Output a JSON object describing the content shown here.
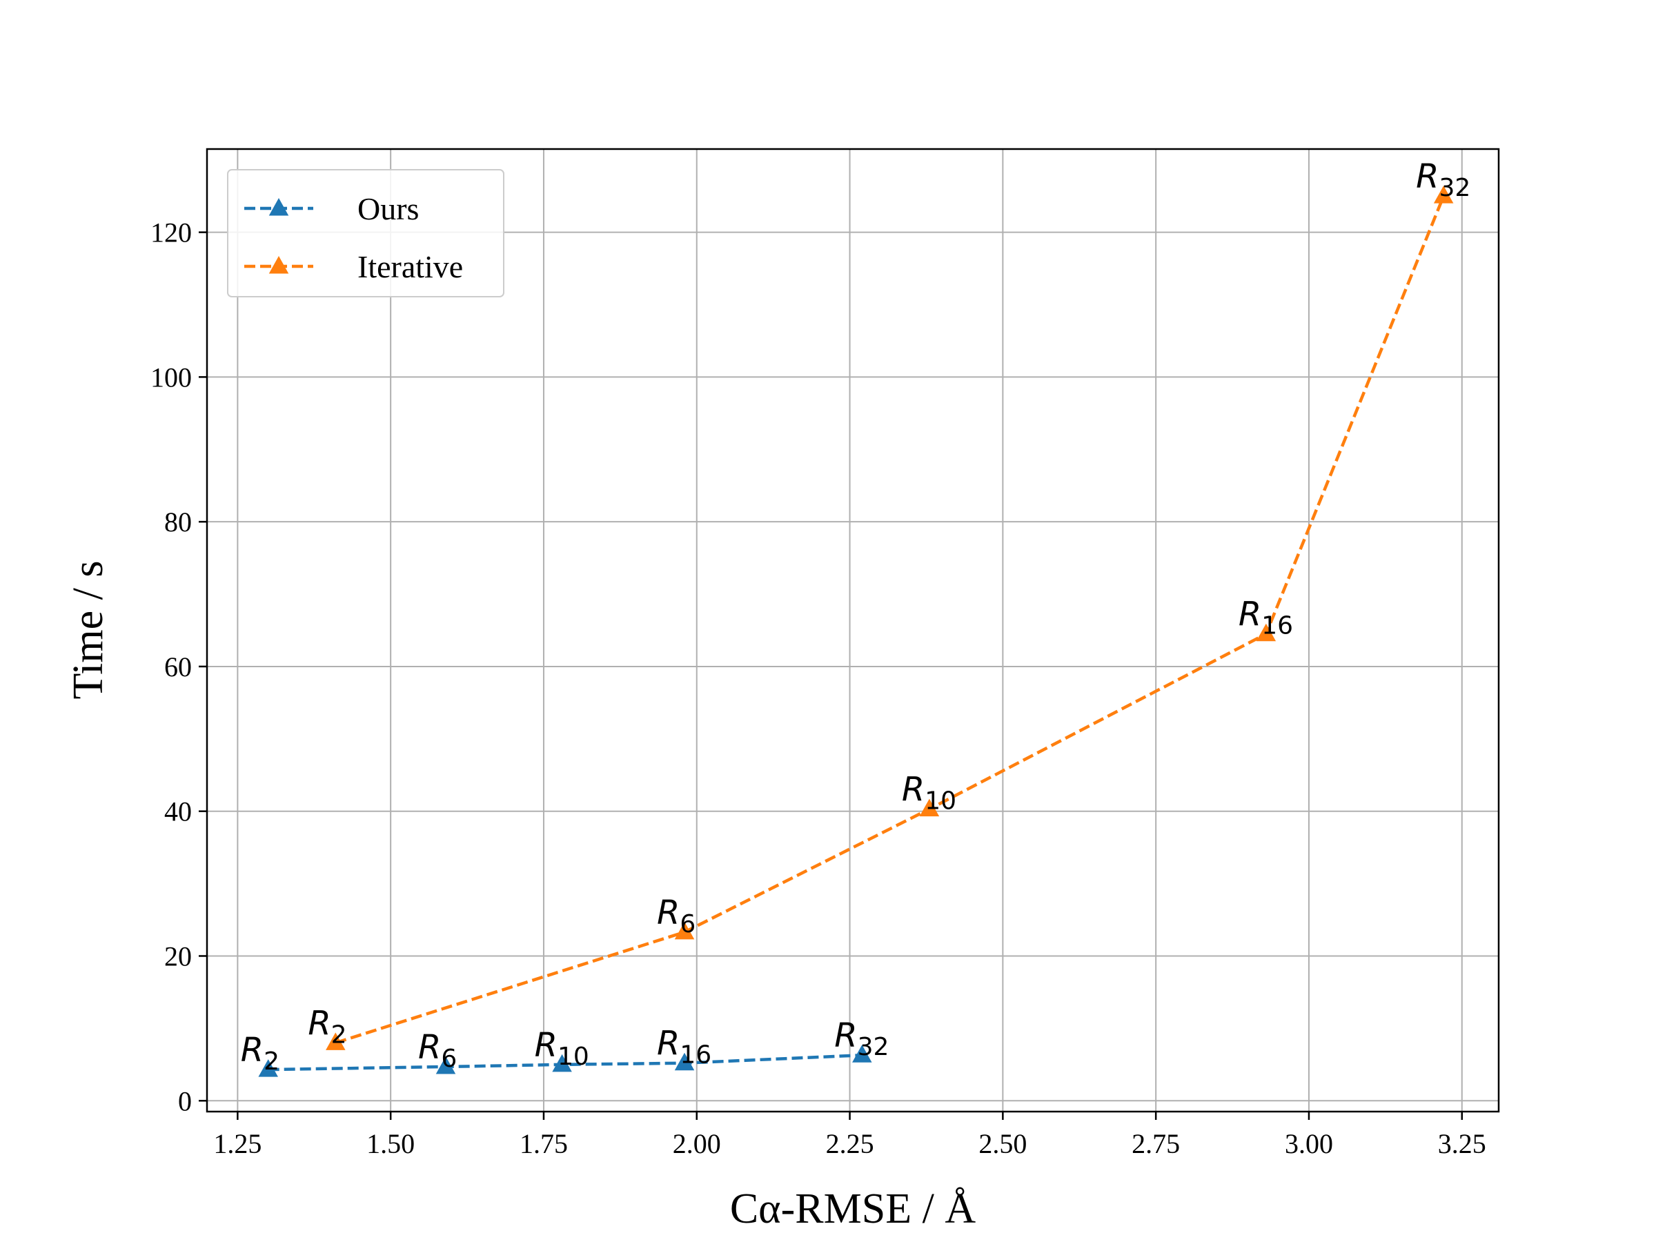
{
  "chart_data": {
    "type": "line",
    "xlabel": "Cα-RMSE / Å",
    "ylabel": "Time / s",
    "xlim": [
      1.2,
      3.31
    ],
    "ylim": [
      -1.5,
      131.5
    ],
    "xticks": [
      1.25,
      1.5,
      1.75,
      2.0,
      2.25,
      2.5,
      2.75,
      3.0,
      3.25
    ],
    "xtick_labels": [
      "1.25",
      "1.50",
      "1.75",
      "2.00",
      "2.25",
      "2.50",
      "2.75",
      "3.00",
      "3.25"
    ],
    "yticks": [
      0,
      20,
      40,
      60,
      80,
      100,
      120
    ],
    "ytick_labels": [
      "0",
      "20",
      "40",
      "60",
      "80",
      "100",
      "120"
    ],
    "grid": true,
    "legend_position": "top-left",
    "series": [
      {
        "name": "Ours",
        "color": "#1f77b4",
        "line_style": "dashed",
        "marker": "triangle-up",
        "x": [
          1.3,
          1.59,
          1.78,
          1.98,
          2.27
        ],
        "y": [
          4.3,
          4.7,
          5.0,
          5.2,
          6.3
        ],
        "point_labels": [
          {
            "base": "R",
            "sub": "2"
          },
          {
            "base": "R",
            "sub": "6"
          },
          {
            "base": "R",
            "sub": "10"
          },
          {
            "base": "R",
            "sub": "16"
          },
          {
            "base": "R",
            "sub": "32"
          }
        ]
      },
      {
        "name": "Iterative",
        "color": "#ff7f0e",
        "line_style": "dashed",
        "marker": "triangle-up",
        "x": [
          1.41,
          1.98,
          2.38,
          2.93,
          3.22
        ],
        "y": [
          8.0,
          23.3,
          40.3,
          64.5,
          125.0
        ],
        "point_labels": [
          {
            "base": "R",
            "sub": "2"
          },
          {
            "base": "R",
            "sub": "6"
          },
          {
            "base": "R",
            "sub": "10"
          },
          {
            "base": "R",
            "sub": "16"
          },
          {
            "base": "R",
            "sub": "32"
          }
        ]
      }
    ]
  }
}
